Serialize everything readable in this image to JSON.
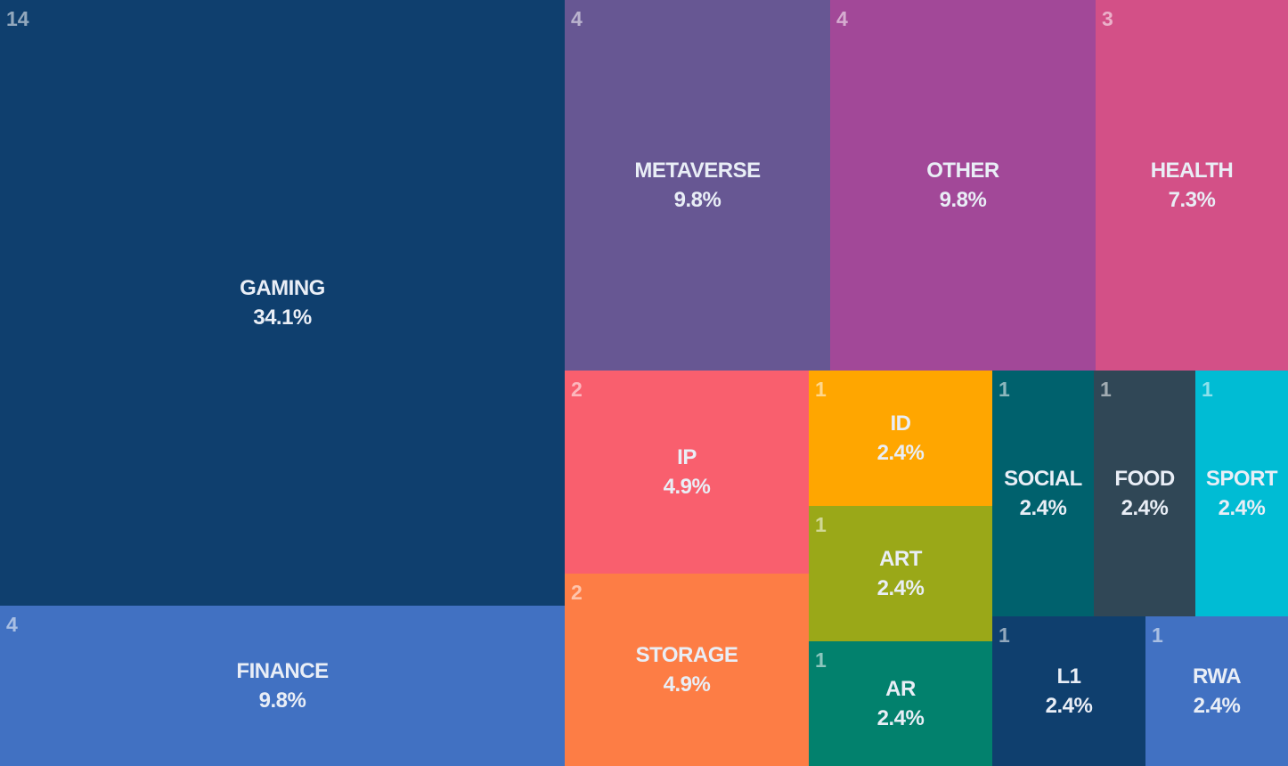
{
  "chart_data": {
    "type": "treemap",
    "items": [
      {
        "name": "GAMING",
        "count": "14",
        "percent": "34.1%",
        "color": "#0f3f6e"
      },
      {
        "name": "FINANCE",
        "count": "4",
        "percent": "9.8%",
        "color": "#4171c2"
      },
      {
        "name": "METAVERSE",
        "count": "4",
        "percent": "9.8%",
        "color": "#675793"
      },
      {
        "name": "OTHER",
        "count": "4",
        "percent": "9.8%",
        "color": "#a24898"
      },
      {
        "name": "HEALTH",
        "count": "3",
        "percent": "7.3%",
        "color": "#d35087"
      },
      {
        "name": "IP",
        "count": "2",
        "percent": "4.9%",
        "color": "#f95f6e"
      },
      {
        "name": "STORAGE",
        "count": "2",
        "percent": "4.9%",
        "color": "#fd7d45"
      },
      {
        "name": "ID",
        "count": "1",
        "percent": "2.4%",
        "color": "#ffa600"
      },
      {
        "name": "ART",
        "count": "1",
        "percent": "2.4%",
        "color": "#9aa818"
      },
      {
        "name": "AR",
        "count": "1",
        "percent": "2.4%",
        "color": "#02816d"
      },
      {
        "name": "SOCIAL",
        "count": "1",
        "percent": "2.4%",
        "color": "#00616d"
      },
      {
        "name": "FOOD",
        "count": "1",
        "percent": "2.4%",
        "color": "#304756"
      },
      {
        "name": "SPORT",
        "count": "1",
        "percent": "2.4%",
        "color": "#00bcd4"
      },
      {
        "name": "L1",
        "count": "1",
        "percent": "2.4%",
        "color": "#0f3f6e"
      },
      {
        "name": "RWA",
        "count": "1",
        "percent": "2.4%",
        "color": "#4171c2"
      }
    ]
  }
}
